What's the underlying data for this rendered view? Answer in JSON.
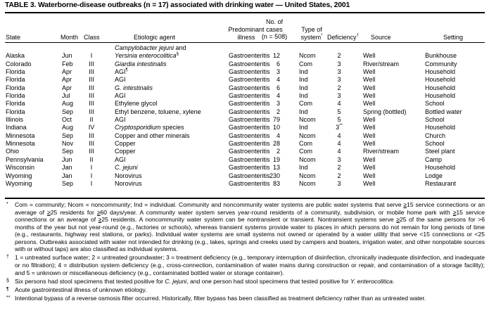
{
  "title": "TABLE 3. Waterborne-disease outbreaks (n = 17) associated with drinking water — United States, 2001",
  "headers": {
    "state": "State",
    "month": "Month",
    "class": "Class",
    "agent": "Etiologic agent",
    "illness_1": "Predominant",
    "illness_2": "illness",
    "cases_1": "No. of",
    "cases_2": "cases",
    "cases_3": "(n = 508)",
    "type_1": "Type of",
    "type_2": "system",
    "type_mark": "*",
    "deficiency": "Deficiency",
    "deficiency_mark": "†",
    "source": "Source",
    "setting": "Setting"
  },
  "rows": [
    {
      "state": "Alaska",
      "month": "Jun",
      "class": "I",
      "agent_lines": [
        [
          {
            "t": "Campylobacter jejuni",
            "i": true
          },
          {
            "t": " and"
          }
        ],
        [
          {
            "t": "Yersinia enterocolitica",
            "i": true
          },
          {
            "t": "§",
            "sup": true
          }
        ]
      ],
      "illness": "Gastroenteritis",
      "cases": "12",
      "type": "Ncom",
      "deficiency": "2",
      "source": "Well",
      "setting": "Bunkhouse"
    },
    {
      "state": "Colorado",
      "month": "Feb",
      "class": "III",
      "agent_lines": [
        [
          {
            "t": "Giardia intestinalis",
            "i": true
          }
        ]
      ],
      "illness": "Gastroenteritis",
      "cases": "6",
      "type": "Com",
      "deficiency": "3",
      "source": "River/stream",
      "setting": "Community"
    },
    {
      "state": "Florida",
      "month": "Apr",
      "class": "III",
      "agent_lines": [
        [
          {
            "t": "AGI"
          },
          {
            "t": "¶",
            "sup": true
          }
        ]
      ],
      "illness": "Gastroenteritis",
      "cases": "3",
      "type": "Ind",
      "deficiency": "3",
      "source": "Well",
      "setting": "Household"
    },
    {
      "state": "Florida",
      "month": "Apr",
      "class": "III",
      "agent_lines": [
        [
          {
            "t": "AGI"
          }
        ]
      ],
      "illness": "Gastroenteritis",
      "cases": "4",
      "type": "Ind",
      "deficiency": "3",
      "source": "Well",
      "setting": "Household"
    },
    {
      "state": "Florida",
      "month": "Apr",
      "class": "III",
      "agent_lines": [
        [
          {
            "t": "G. intestinalis",
            "i": true
          }
        ]
      ],
      "illness": "Gastroenteritis",
      "cases": "6",
      "type": "Ind",
      "deficiency": "2",
      "source": "Well",
      "setting": "Household"
    },
    {
      "state": "Florida",
      "month": "Jul",
      "class": "III",
      "agent_lines": [
        [
          {
            "t": "AGI"
          }
        ]
      ],
      "illness": "Gastroenteritis",
      "cases": "4",
      "type": "Ind",
      "deficiency": "3",
      "source": "Well",
      "setting": "Household"
    },
    {
      "state": "Florida",
      "month": "Aug",
      "class": "III",
      "agent_lines": [
        [
          {
            "t": "Ethylene glycol"
          }
        ]
      ],
      "illness": "Gastroenteritis",
      "cases": "3",
      "type": "Com",
      "deficiency": "4",
      "source": "Well",
      "setting": "School"
    },
    {
      "state": "Florida",
      "month": "Sep",
      "class": "III",
      "agent_lines": [
        [
          {
            "t": "Ethyl benzene, toluene, xylene"
          }
        ]
      ],
      "illness": "Gastroenteritis",
      "cases": "2",
      "type": "Ind",
      "deficiency": "5",
      "source": "Spring (bottled)",
      "setting": "Bottled water"
    },
    {
      "state": "Illinois",
      "month": "Oct",
      "class": "II",
      "agent_lines": [
        [
          {
            "t": "AGI"
          }
        ]
      ],
      "illness": "Gastroenteritis",
      "cases": "79",
      "type": "Ncom",
      "deficiency": "5",
      "source": "Well",
      "setting": "School"
    },
    {
      "state": "Indiana",
      "month": "Aug",
      "class": "IV",
      "agent_lines": [
        [
          {
            "t": "Cryptosporidium",
            "i": true
          },
          {
            "t": " species"
          }
        ]
      ],
      "illness": "Gastroenteritis",
      "cases": "10",
      "type": "Ind",
      "deficiency": "3",
      "deficiency_mark": "**",
      "source": "Well",
      "setting": "Household"
    },
    {
      "state": "Minnesota",
      "month": "Sep",
      "class": "III",
      "agent_lines": [
        [
          {
            "t": "Copper and other minerals"
          }
        ]
      ],
      "illness": "Gastroenteritis",
      "cases": "4",
      "type": "Ncom",
      "deficiency": "4",
      "source": "Well",
      "setting": "Church"
    },
    {
      "state": "Minnesota",
      "month": "Nov",
      "class": "III",
      "agent_lines": [
        [
          {
            "t": "Copper"
          }
        ]
      ],
      "illness": "Gastroenteritis",
      "cases": "28",
      "type": "Com",
      "deficiency": "4",
      "source": "Well",
      "setting": "School"
    },
    {
      "state": "Ohio",
      "month": "Sep",
      "class": "III",
      "agent_lines": [
        [
          {
            "t": "Copper"
          }
        ]
      ],
      "illness": "Gastroenteritis",
      "cases": "2",
      "type": "Com",
      "deficiency": "4",
      "source": "River/stream",
      "setting": "Steel plant"
    },
    {
      "state": "Pennsylvania",
      "month": "Jun",
      "class": "II",
      "agent_lines": [
        [
          {
            "t": "AGI"
          }
        ]
      ],
      "illness": "Gastroenteritis",
      "cases": "19",
      "type": "Ncom",
      "deficiency": "3",
      "source": "Well",
      "setting": "Camp"
    },
    {
      "state": "Wisconsin",
      "month": "Jan",
      "class": "I",
      "agent_lines": [
        [
          {
            "t": "C. jejuni",
            "i": true
          }
        ]
      ],
      "illness": "Gastroenteritis",
      "cases": "13",
      "type": "Ind",
      "deficiency": "2",
      "source": "Well",
      "setting": "Household"
    },
    {
      "state": "Wyoming",
      "month": "Jan",
      "class": "I",
      "agent_lines": [
        [
          {
            "t": "Norovirus"
          }
        ]
      ],
      "illness": "Gastroenteritis",
      "cases": "230",
      "type": "Ncom",
      "deficiency": "2",
      "source": "Well",
      "setting": "Lodge"
    },
    {
      "state": "Wyoming",
      "month": "Sep",
      "class": "I",
      "agent_lines": [
        [
          {
            "t": "Norovirus"
          }
        ]
      ],
      "illness": "Gastroenteritis",
      "cases": "83",
      "type": "Ncom",
      "deficiency": "3",
      "source": "Well",
      "setting": "Restaurant"
    }
  ],
  "footnotes": [
    {
      "mark": "*",
      "parts": [
        {
          "t": "Com = community; Ncom = noncommunity; Ind = individual. Community and noncommunity water systems are public water systems that serve "
        },
        {
          "t": "≥",
          "u": true
        },
        {
          "t": "15 service connections or an average of "
        },
        {
          "t": "≥",
          "u": true
        },
        {
          "t": "25 residents for "
        },
        {
          "t": "≥",
          "u": true
        },
        {
          "t": "60 days/year. A community water system serves year-round residents of a community, subdivision, or mobile home park with "
        },
        {
          "t": "≥",
          "u": true
        },
        {
          "t": "15 service connections or an average of "
        },
        {
          "t": "≥",
          "u": true
        },
        {
          "t": "25 residents. A noncommunity water system can be nontransient or transient. Nontransient systems serve "
        },
        {
          "t": "≥",
          "u": true
        },
        {
          "t": "25 of the same persons for >6 months of the year but not year-round (e.g., factories or schools), whereas transient systems provide water to places in which persons do not remain for long periods of time (e.g., restaurants, highway rest stations, or parks). Individual water systems are small systems not owned or operated by a water utility that serve <15 connections or <25 persons. Outbreaks associated with water not intended for drinking (e.g., lakes, springs and creeks used by campers and boaters, irrigation water, and other nonpotable sources with or without taps) are also classified as individual systems."
        }
      ]
    },
    {
      "mark": "†",
      "parts": [
        {
          "t": "1 = untreated surface water; 2 = untreated groundwater; 3 = treatment deficiency (e.g., temporary interruption of disinfection, chronically inadequate disinfection, and inadequate or no filtration); 4 = distribution system deficiency (e.g., cross-connection, contamination of water mains during construction or repair, and contamination of a storage facility); and 5 = unknown or miscellaneous deficiency (e.g., contaminated bottled water or storage container)."
        }
      ]
    },
    {
      "mark": "§",
      "parts": [
        {
          "t": "Six persons had stool specimens that tested positive for "
        },
        {
          "t": "C. jejuni",
          "i": true
        },
        {
          "t": ", and one person had stool specimens that tested positive for "
        },
        {
          "t": "Y. enterocolitica",
          "i": true
        },
        {
          "t": "."
        }
      ]
    },
    {
      "mark": "¶",
      "parts": [
        {
          "t": "Acute gastrointestinal illness of unknown etiology."
        }
      ]
    },
    {
      "mark": "**",
      "parts": [
        {
          "t": "Intentional bypass of a reverse osmosis filter occurred. Historically, filter bypass has been classified as treatment deficiency rather than as untreated water."
        }
      ]
    }
  ]
}
